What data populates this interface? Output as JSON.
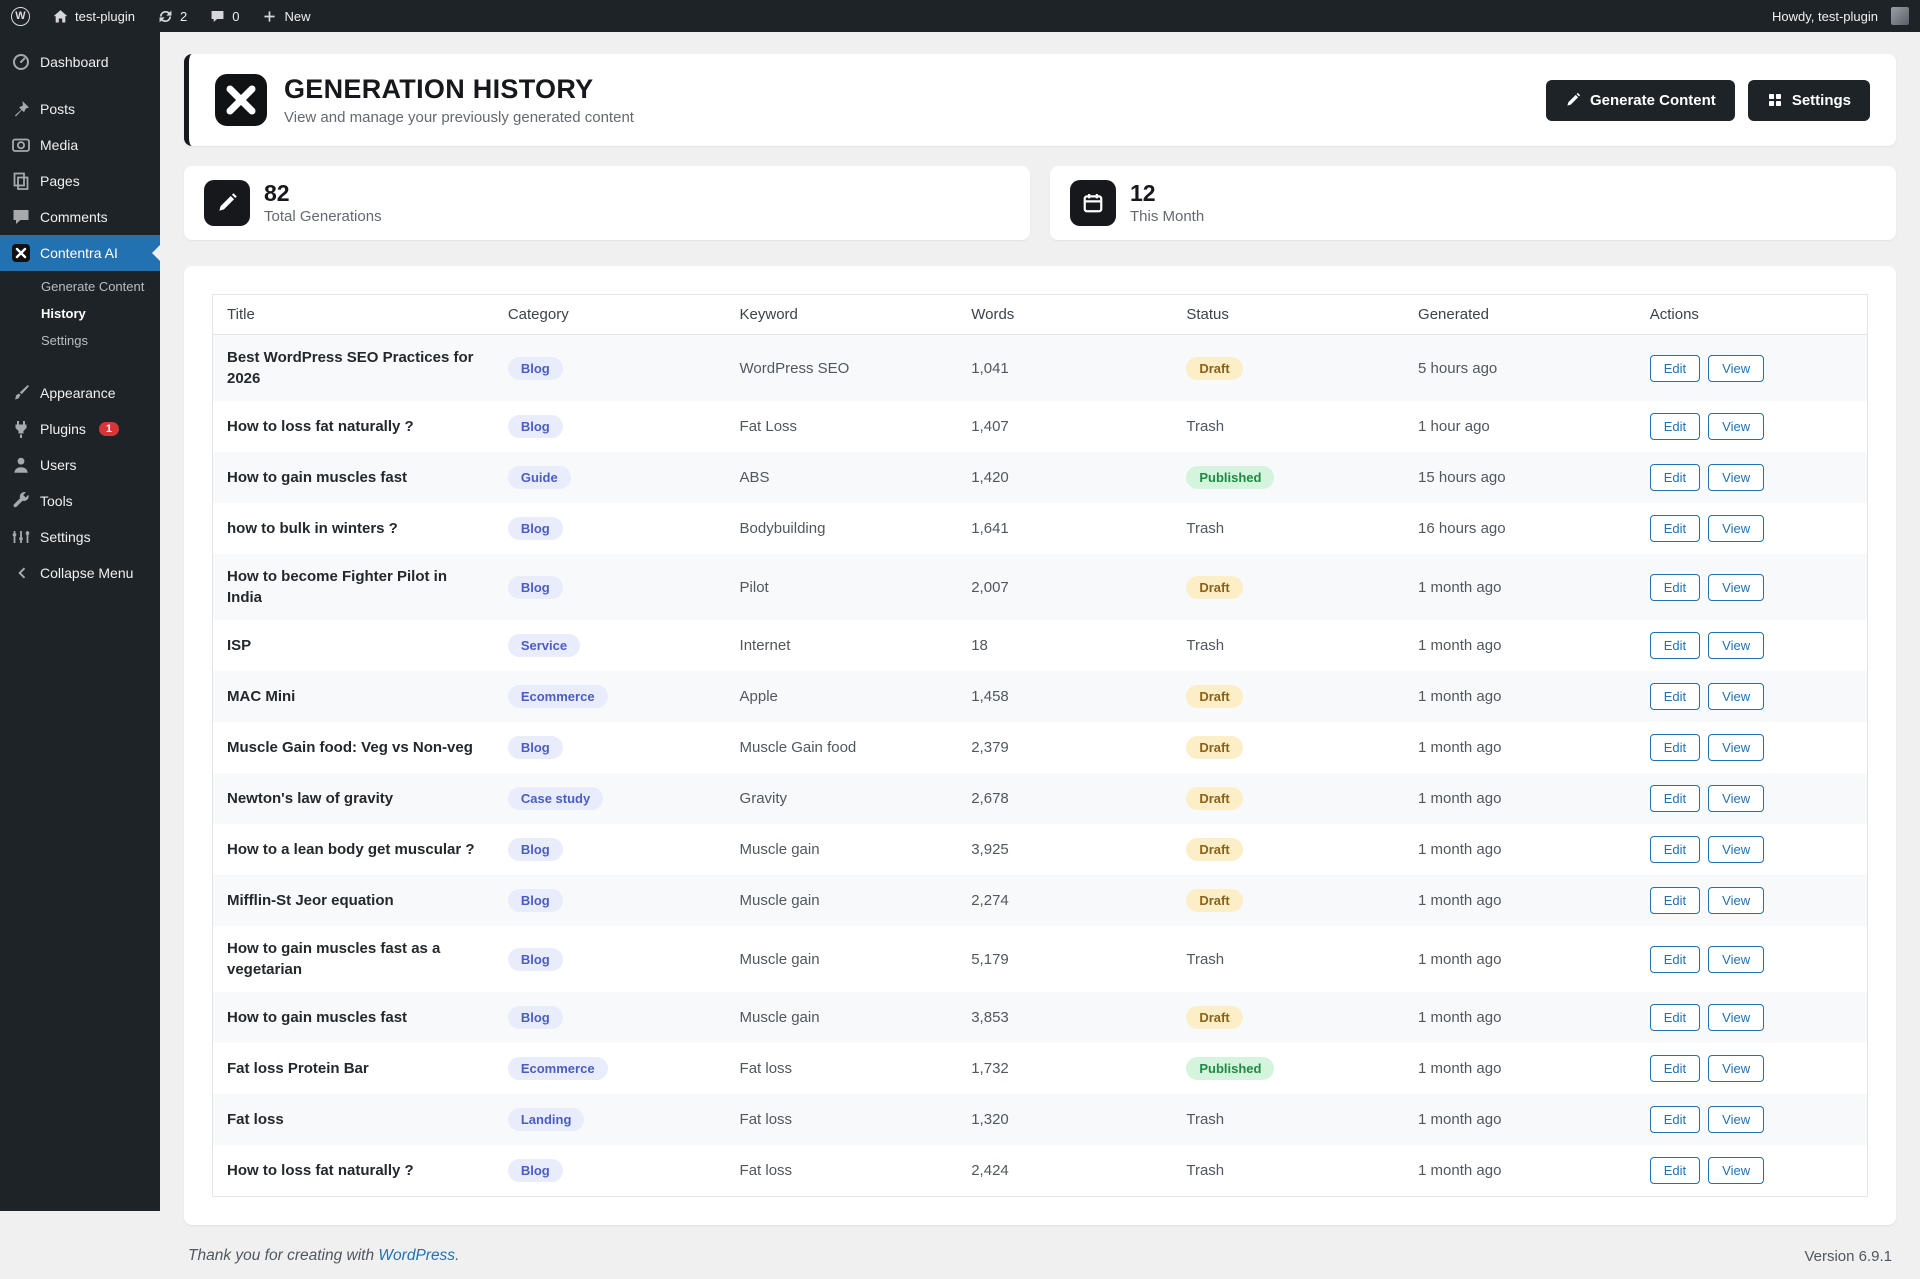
{
  "admin_bar": {
    "site_name": "test-plugin",
    "updates_count": "2",
    "comments_count": "0",
    "new_label": "New",
    "howdy": "Howdy, test-plugin"
  },
  "sidebar": {
    "items": [
      {
        "label": "Dashboard",
        "icon": "dashboard-icon"
      },
      {
        "separator": true
      },
      {
        "label": "Posts",
        "icon": "posts-icon"
      },
      {
        "label": "Media",
        "icon": "media-icon"
      },
      {
        "label": "Pages",
        "icon": "pages-icon"
      },
      {
        "label": "Comments",
        "icon": "comments-icon"
      },
      {
        "label": "Contentra AI",
        "icon": "contentra-icon",
        "active": true,
        "submenu": [
          {
            "label": "Generate Content"
          },
          {
            "label": "History",
            "current": true
          },
          {
            "label": "Settings"
          }
        ]
      },
      {
        "separator": true
      },
      {
        "label": "Appearance",
        "icon": "appearance-icon"
      },
      {
        "label": "Plugins",
        "icon": "plugins-icon",
        "badge": "1"
      },
      {
        "label": "Users",
        "icon": "users-icon"
      },
      {
        "label": "Tools",
        "icon": "tools-icon"
      },
      {
        "label": "Settings",
        "icon": "settings-icon"
      },
      {
        "label": "Collapse Menu",
        "icon": "collapse-icon"
      }
    ]
  },
  "header": {
    "title": "GENERATION HISTORY",
    "subtitle": "View and manage your previously generated content",
    "generate_button": "Generate Content",
    "settings_button": "Settings"
  },
  "stats": [
    {
      "value": "82",
      "label": "Total Generations"
    },
    {
      "value": "12",
      "label": "This Month"
    }
  ],
  "table": {
    "headers": [
      "Title",
      "Category",
      "Keyword",
      "Words",
      "Status",
      "Generated",
      "Actions"
    ],
    "edit_label": "Edit",
    "view_label": "View",
    "rows": [
      {
        "title": "Best WordPress SEO Practices for 2026",
        "category": "Blog",
        "keyword": "WordPress SEO",
        "words": "1,041",
        "status": "Draft",
        "generated": "5 hours ago"
      },
      {
        "title": "How to loss fat naturally ?",
        "category": "Blog",
        "keyword": "Fat Loss",
        "words": "1,407",
        "status": "Trash",
        "generated": "1 hour ago"
      },
      {
        "title": "How to gain muscles fast",
        "category": "Guide",
        "keyword": "ABS",
        "words": "1,420",
        "status": "Published",
        "generated": "15 hours ago"
      },
      {
        "title": "how to bulk in winters ?",
        "category": "Blog",
        "keyword": "Bodybuilding",
        "words": "1,641",
        "status": "Trash",
        "generated": "16 hours ago"
      },
      {
        "title": "How to become Fighter Pilot in India",
        "category": "Blog",
        "keyword": "Pilot",
        "words": "2,007",
        "status": "Draft",
        "generated": "1 month ago"
      },
      {
        "title": "ISP",
        "category": "Service",
        "keyword": "Internet",
        "words": "18",
        "status": "Trash",
        "generated": "1 month ago"
      },
      {
        "title": "MAC Mini",
        "category": "Ecommerce",
        "keyword": "Apple",
        "words": "1,458",
        "status": "Draft",
        "generated": "1 month ago"
      },
      {
        "title": "Muscle Gain food: Veg vs Non-veg",
        "category": "Blog",
        "keyword": "Muscle Gain food",
        "words": "2,379",
        "status": "Draft",
        "generated": "1 month ago"
      },
      {
        "title": "Newton's law of gravity",
        "category": "Case study",
        "keyword": "Gravity",
        "words": "2,678",
        "status": "Draft",
        "generated": "1 month ago"
      },
      {
        "title": "How to a lean body get muscular ?",
        "category": "Blog",
        "keyword": "Muscle gain",
        "words": "3,925",
        "status": "Draft",
        "generated": "1 month ago"
      },
      {
        "title": "Mifflin-St Jeor equation",
        "category": "Blog",
        "keyword": "Muscle gain",
        "words": "2,274",
        "status": "Draft",
        "generated": "1 month ago"
      },
      {
        "title": "How to gain muscles fast as a vegetarian",
        "category": "Blog",
        "keyword": "Muscle gain",
        "words": "5,179",
        "status": "Trash",
        "generated": "1 month ago"
      },
      {
        "title": "How to gain muscles fast",
        "category": "Blog",
        "keyword": "Muscle gain",
        "words": "3,853",
        "status": "Draft",
        "generated": "1 month ago"
      },
      {
        "title": "Fat loss Protein Bar",
        "category": "Ecommerce",
        "keyword": "Fat loss",
        "words": "1,732",
        "status": "Published",
        "generated": "1 month ago"
      },
      {
        "title": "Fat loss",
        "category": "Landing",
        "keyword": "Fat loss",
        "words": "1,320",
        "status": "Trash",
        "generated": "1 month ago"
      },
      {
        "title": "How to loss fat naturally ?",
        "category": "Blog",
        "keyword": "Fat loss",
        "words": "2,424",
        "status": "Trash",
        "generated": "1 month ago"
      }
    ]
  },
  "footer": {
    "thanks_prefix": "Thank you for creating with ",
    "wordpress_link": "WordPress",
    "thanks_suffix": ".",
    "version": "Version 6.9.1"
  }
}
